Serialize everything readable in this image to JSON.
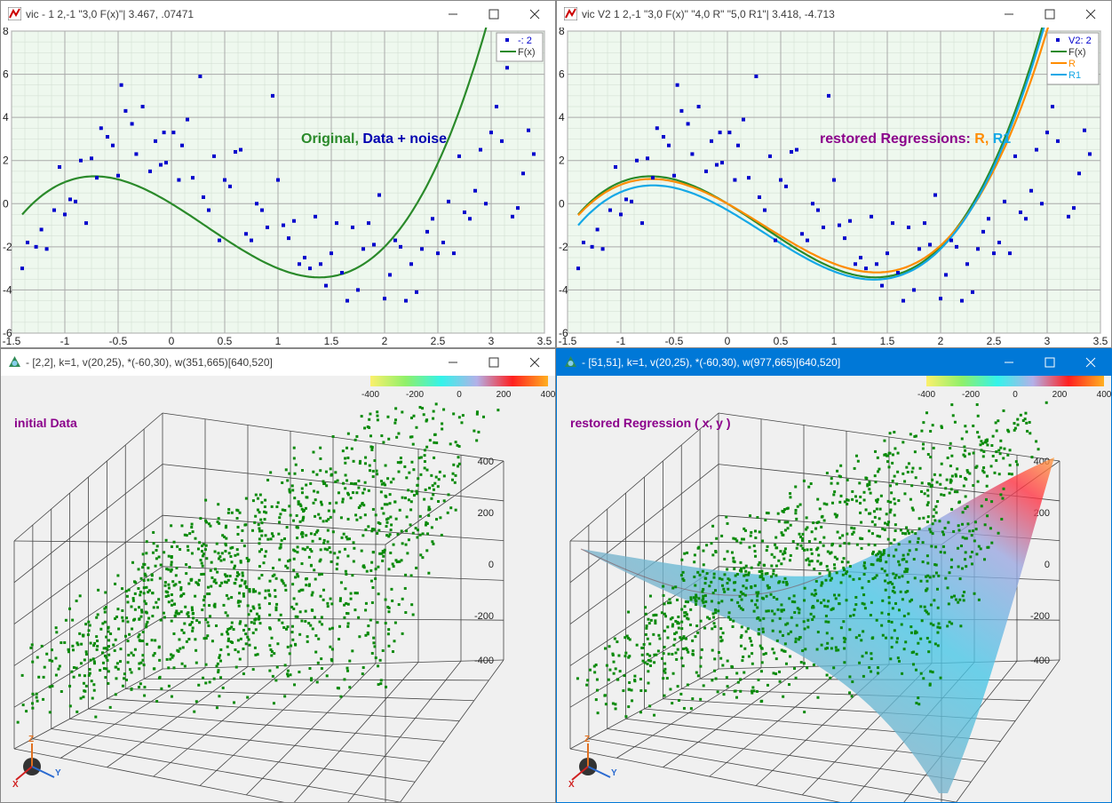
{
  "windows": {
    "top_left": {
      "title": "vic - 1 2,-1 \"3,0 F(x)\"| 3.467, .07471"
    },
    "top_right": {
      "title": "vic V2 1 2,-1 \"3,0 F(x)\" \"4,0 R\" \"5,0 R1\"| 3.418, -4.713"
    },
    "bottom_left": {
      "title": "- [2,2], k=1, v(20,25), *(-60,30), w(351,665)[640,520]"
    },
    "bottom_right": {
      "title": "- [51,51], k=1, v(20,25), *(-60,30), w(977,665)[640,520]"
    }
  },
  "colors": {
    "plot_bg": "#eef8ee",
    "grid": "#aaaaaa",
    "points": "#0000cc",
    "F": "#2a8a2a",
    "R": "#ff8c00",
    "R1": "#14a8e6",
    "scatter3d": "#0a8a0a",
    "active_title": "#0078d7",
    "label_purple": "#8b008b"
  },
  "chart_data": [
    {
      "type": "scatter",
      "panel": "top_left",
      "x_ticks": [
        "-1.5",
        "-1",
        "-0.5",
        "0",
        "0.5",
        "1",
        "1.5",
        "2",
        "2.5",
        "3",
        "3.5"
      ],
      "y_ticks": [
        "-6",
        "-4",
        "-2",
        "0",
        "2",
        "4",
        "6",
        "8"
      ],
      "xlim": [
        -1.5,
        3.5
      ],
      "ylim": [
        -6,
        8
      ],
      "annotation": [
        "Original,",
        "Data + noise"
      ],
      "legend": [
        {
          "name": "-: 2",
          "kind": "points"
        },
        {
          "name": "F(x)",
          "kind": "line"
        }
      ],
      "series": [
        {
          "name": "F(x)",
          "kind": "line",
          "coef": [
            1,
            -1,
            -3,
            0
          ]
        },
        {
          "name": "-: 2",
          "kind": "points",
          "x": [
            -1.4,
            -1.35,
            -1.27,
            -1.22,
            -1.17,
            -1.1,
            -1.05,
            -1.0,
            -0.95,
            -0.9,
            -0.85,
            -0.8,
            -0.75,
            -0.7,
            -0.66,
            -0.6,
            -0.55,
            -0.5,
            -0.47,
            -0.43,
            -0.37,
            -0.33,
            -0.27,
            -0.2,
            -0.15,
            -0.1,
            -0.07,
            -0.05,
            0.02,
            0.07,
            0.1,
            0.15,
            0.2,
            0.27,
            0.3,
            0.35,
            0.4,
            0.45,
            0.5,
            0.55,
            0.6,
            0.65,
            0.7,
            0.75,
            0.8,
            0.85,
            0.9,
            0.95,
            1.0,
            1.05,
            1.1,
            1.15,
            1.2,
            1.25,
            1.3,
            1.35,
            1.4,
            1.45,
            1.5,
            1.55,
            1.6,
            1.65,
            1.7,
            1.75,
            1.8,
            1.85,
            1.9,
            1.95,
            2.0,
            2.05,
            2.1,
            2.15,
            2.2,
            2.25,
            2.3,
            2.35,
            2.4,
            2.45,
            2.5,
            2.55,
            2.6,
            2.65,
            2.7,
            2.75,
            2.8,
            2.85,
            2.9,
            2.95,
            3.0,
            3.05,
            3.1,
            3.15,
            3.2,
            3.25,
            3.3,
            3.35,
            3.4
          ],
          "y": [
            -3.0,
            -1.8,
            -2.0,
            -1.2,
            -2.1,
            -0.3,
            1.7,
            -0.5,
            0.2,
            0.1,
            2.0,
            -0.9,
            2.1,
            1.2,
            3.5,
            3.1,
            2.7,
            1.3,
            5.5,
            4.3,
            3.7,
            2.3,
            4.5,
            1.5,
            2.9,
            1.8,
            3.3,
            1.9,
            3.3,
            1.1,
            2.7,
            3.9,
            1.2,
            5.9,
            0.3,
            -0.3,
            2.2,
            -1.7,
            1.1,
            0.8,
            2.4,
            2.5,
            -1.4,
            -1.7,
            0.0,
            -0.3,
            -1.1,
            5.0,
            1.1,
            -1.0,
            -1.6,
            -0.8,
            -2.8,
            -2.5,
            -3.0,
            -0.6,
            -2.8,
            -3.8,
            -2.3,
            -0.9,
            -3.2,
            -4.5,
            -1.1,
            -4.0,
            -2.1,
            -0.9,
            -1.9,
            0.4,
            -4.4,
            -3.3,
            -1.7,
            -2.0,
            -4.5,
            -2.8,
            -4.1,
            -2.1,
            -1.3,
            -0.7,
            -2.3,
            -1.8,
            0.1,
            -2.3,
            2.2,
            -0.4,
            -0.7,
            0.6,
            2.5,
            0.0,
            3.3,
            4.5,
            2.9,
            6.3,
            -0.6,
            -0.2,
            1.4,
            3.4,
            2.3
          ]
        }
      ]
    },
    {
      "type": "scatter",
      "panel": "top_right",
      "x_ticks": [
        "-1.5",
        "-1",
        "-0.5",
        "0",
        "0.5",
        "1",
        "1.5",
        "2",
        "2.5",
        "3",
        "3.5"
      ],
      "y_ticks": [
        "-6",
        "-4",
        "-2",
        "0",
        "2",
        "4",
        "6",
        "8"
      ],
      "xlim": [
        -1.5,
        3.5
      ],
      "ylim": [
        -6,
        8
      ],
      "annotation": [
        "restored",
        "Regressions:",
        "R,",
        "R1"
      ],
      "legend": [
        {
          "name": "V2: 2",
          "kind": "points"
        },
        {
          "name": "F(x)",
          "kind": "line"
        },
        {
          "name": "R",
          "kind": "line"
        },
        {
          "name": "R1",
          "kind": "line"
        }
      ],
      "series": [
        {
          "name": "F(x)",
          "kind": "line",
          "coef": [
            1,
            -1,
            -3,
            0
          ]
        },
        {
          "name": "R",
          "kind": "line",
          "coef": [
            0.92,
            -0.95,
            -2.75,
            0.0
          ]
        },
        {
          "name": "R1",
          "kind": "line",
          "coef": [
            0.98,
            -1.0,
            -2.82,
            -0.3
          ]
        }
      ]
    },
    {
      "type": "scatter",
      "panel": "bottom_left",
      "label": "initial  Data",
      "z_ticks": [
        "400",
        "200",
        "0",
        "-200",
        "-400"
      ],
      "colorbar": {
        "ticks": [
          "-400",
          "-200",
          "0",
          "200",
          "400"
        ],
        "stops": [
          "#fbf06c",
          "#8ff06a",
          "#34f3ea",
          "#b3b0e8",
          "#ff2020",
          "#ffb020"
        ]
      },
      "point_count": 1300
    },
    {
      "type": "scatter",
      "panel": "bottom_right",
      "label": "restored  Regression ( x, y )",
      "z_ticks": [
        "400",
        "200",
        "0",
        "-200",
        "-400"
      ],
      "colorbar": {
        "ticks": [
          "-400",
          "-200",
          "0",
          "200",
          "400"
        ],
        "stops": [
          "#fbf06c",
          "#8ff06a",
          "#34f3ea",
          "#b3b0e8",
          "#ff2020",
          "#ffb020"
        ]
      },
      "point_count": 1300
    }
  ]
}
